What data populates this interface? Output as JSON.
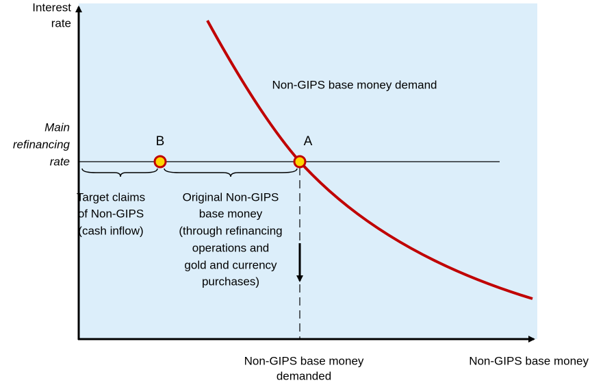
{
  "axes": {
    "y_label": [
      "Interest",
      "rate"
    ],
    "x_label": "Non-GIPS base money"
  },
  "rate_label": [
    "Main",
    "refinancing",
    "rate"
  ],
  "points": [
    {
      "label": "B"
    },
    {
      "label": "A"
    }
  ],
  "curve_label": "Non-GIPS base money demand",
  "braces": [
    {
      "label": [
        "Target claims",
        "of Non-GIPS",
        "(cash inflow)"
      ]
    },
    {
      "label": [
        "Original Non-GIPS",
        "base money",
        "(through refinancing",
        "operations and",
        "gold and currency",
        "purchases)"
      ]
    }
  ],
  "demanded_label": [
    "Non-GIPS base money",
    "demanded"
  ]
}
